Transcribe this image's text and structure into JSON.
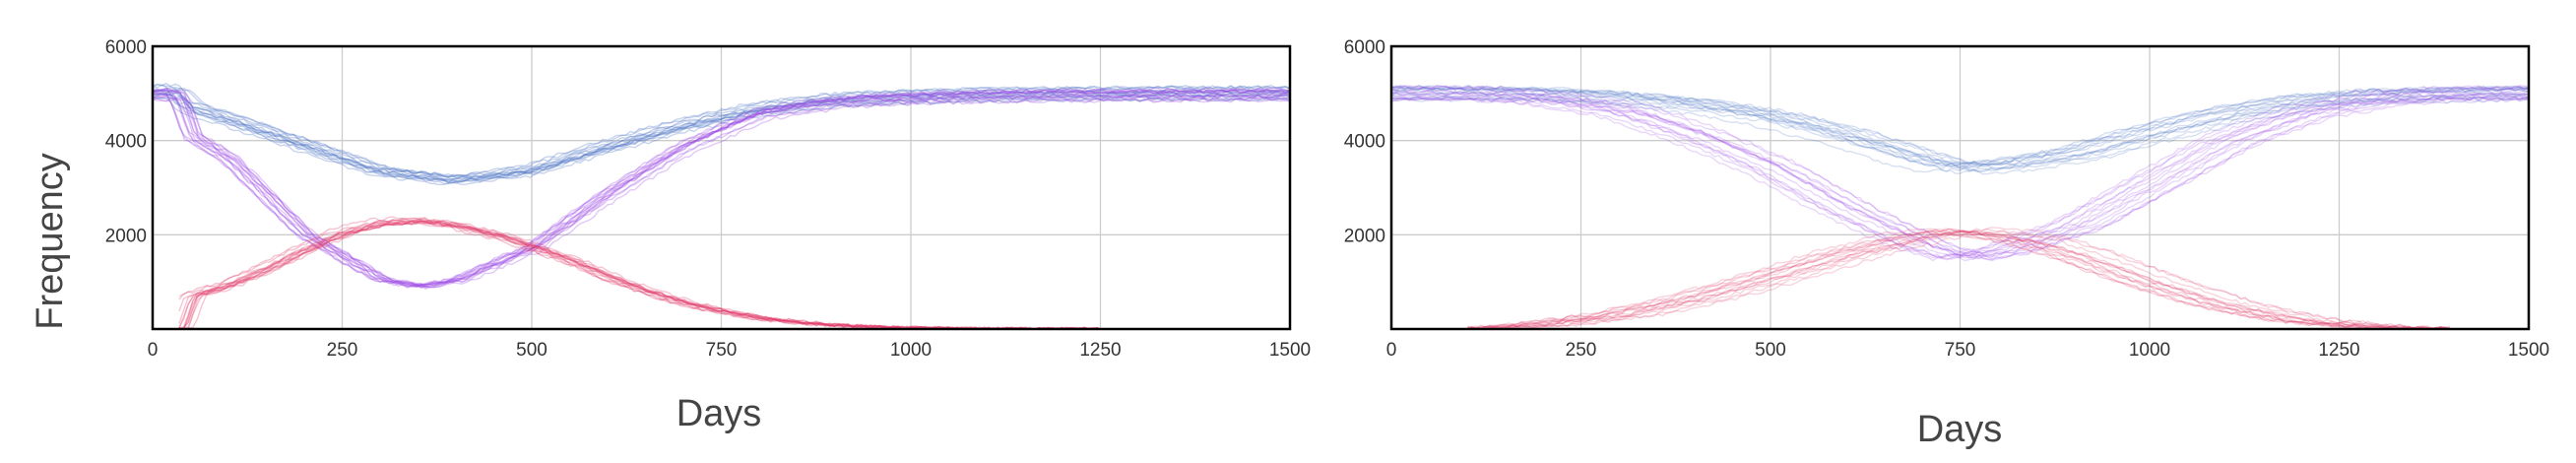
{
  "figure": {
    "ylabel": "Frequency"
  },
  "colors": {
    "blue": "#4a72c4",
    "purple": "#9a4ae6",
    "red": "#e03a6a",
    "grid": "#cccccc",
    "frame": "#000000"
  },
  "chart_data": [
    {
      "type": "line",
      "xlabel": "Days",
      "ylabel": "Frequency",
      "xlim": [
        0,
        1500
      ],
      "ylim": [
        0,
        6000
      ],
      "xticks": [
        0,
        250,
        500,
        750,
        1000,
        1250,
        1500
      ],
      "yticks": [
        2000,
        4000,
        6000
      ],
      "grid": true,
      "legend": "none",
      "note": "many overlapping stochastic realisations per series",
      "series": [
        {
          "color": "#4a72c4",
          "x": [
            0,
            30,
            50,
            100,
            200,
            300,
            400,
            500,
            600,
            700,
            800,
            900,
            1000,
            1100,
            1200,
            1300,
            1500
          ],
          "y": [
            5000,
            5050,
            4700,
            4450,
            3900,
            3350,
            3150,
            3350,
            3850,
            4300,
            4650,
            4850,
            4920,
            4960,
            4980,
            4990,
            5000
          ]
        },
        {
          "color": "#9a4ae6",
          "x": [
            0,
            30,
            40,
            50,
            100,
            200,
            300,
            350,
            400,
            500,
            600,
            700,
            800,
            900,
            1000,
            1100,
            1200,
            1500
          ],
          "y": [
            5000,
            5000,
            4600,
            4100,
            3600,
            2000,
            1050,
            900,
            1050,
            1750,
            2900,
            3900,
            4600,
            4850,
            4930,
            4970,
            4985,
            5000
          ]
        },
        {
          "color": "#e03a6a",
          "x": [
            35,
            50,
            100,
            150,
            200,
            250,
            300,
            350,
            400,
            450,
            500,
            550,
            600,
            650,
            700,
            750,
            800,
            850,
            900,
            950,
            1000,
            1050,
            1100,
            1150,
            1200,
            1250
          ],
          "y": [
            0,
            700,
            950,
            1300,
            1700,
            2050,
            2250,
            2300,
            2200,
            2000,
            1750,
            1450,
            1100,
            800,
            550,
            370,
            230,
            140,
            80,
            45,
            25,
            12,
            6,
            3,
            1,
            0
          ]
        }
      ]
    },
    {
      "type": "line",
      "xlabel": "Days",
      "ylabel": "",
      "xlim": [
        0,
        1500
      ],
      "ylim": [
        0,
        6000
      ],
      "xticks": [
        0,
        250,
        500,
        750,
        1000,
        1250,
        1500
      ],
      "yticks": [
        2000,
        4000,
        6000
      ],
      "grid": true,
      "legend": "none",
      "note": "many overlapping stochastic realisations per series",
      "series": [
        {
          "color": "#4a72c4",
          "x": [
            0,
            100,
            200,
            300,
            400,
            500,
            600,
            700,
            750,
            800,
            900,
            1000,
            1100,
            1200,
            1300,
            1400,
            1500
          ],
          "y": [
            5000,
            5000,
            4980,
            4900,
            4750,
            4500,
            4100,
            3600,
            3400,
            3450,
            3700,
            4150,
            4550,
            4820,
            4940,
            4980,
            5000
          ]
        },
        {
          "color": "#9a4ae6",
          "x": [
            0,
            100,
            200,
            300,
            400,
            500,
            600,
            700,
            750,
            800,
            900,
            1000,
            1100,
            1200,
            1300,
            1400,
            1500
          ],
          "y": [
            5000,
            4990,
            4900,
            4650,
            4100,
            3400,
            2500,
            1750,
            1500,
            1650,
            2200,
            3100,
            4000,
            4600,
            4900,
            4980,
            5000
          ]
        },
        {
          "color": "#e03a6a",
          "x": [
            100,
            200,
            300,
            400,
            500,
            600,
            700,
            750,
            800,
            850,
            900,
            1000,
            1100,
            1200,
            1300,
            1400
          ],
          "y": [
            0,
            100,
            300,
            650,
            1100,
            1600,
            2000,
            2100,
            2000,
            1850,
            1600,
            1000,
            500,
            180,
            40,
            0
          ]
        }
      ]
    }
  ]
}
